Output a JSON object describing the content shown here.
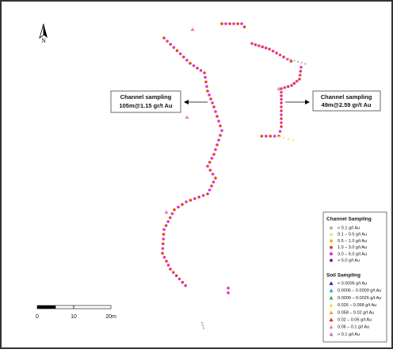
{
  "north": "N",
  "callouts": [
    {
      "title": "Channel sampling",
      "text": "105m@1.15 gr/t Au"
    },
    {
      "title": "Channel sampling",
      "text": "49m@2.59 gr/t Au"
    }
  ],
  "scale_bar": [
    "0",
    "10",
    "20m"
  ],
  "legend": {
    "channel_title": "Channel Sampling",
    "channel": [
      {
        "label": "< 0.1 g/t Au",
        "color": "#b0b0b0"
      },
      {
        "label": "0.1 – 0.5 g/t Au",
        "color": "#f5e663"
      },
      {
        "label": "0.5 – 1.0 g/t Au",
        "color": "#f0b030"
      },
      {
        "label": "1.0 – 3.0 g/t Au",
        "color": "#e8401e"
      },
      {
        "label": "3.0 – 5.0 g/t Au",
        "color": "#e030c8"
      },
      {
        "label": "> 5.0 g/t Au",
        "color": "#8020b0"
      }
    ],
    "soil_title": "Soil Sampling",
    "soil": [
      {
        "label": "< 0.0006 g/t Au",
        "color": "#2030c0"
      },
      {
        "label": "0.0006 – 0.0009 g/t Au",
        "color": "#30a0e0"
      },
      {
        "label": "0.0009 – 0.0026 g/t Au",
        "color": "#40b040"
      },
      {
        "label": "0.026 – 0.058 g/t Au",
        "color": "#f0e040"
      },
      {
        "label": "0.058 – 0.02 g/t Au",
        "color": "#f0a030"
      },
      {
        "label": "0.02 – 0.06 g/t Au",
        "color": "#e03020"
      },
      {
        "label": "0.06 – 0.1 g/t Au",
        "color": "#f080c0"
      },
      {
        "label": "> 0.1 g/t Au",
        "color": "#c070e0"
      }
    ]
  }
}
